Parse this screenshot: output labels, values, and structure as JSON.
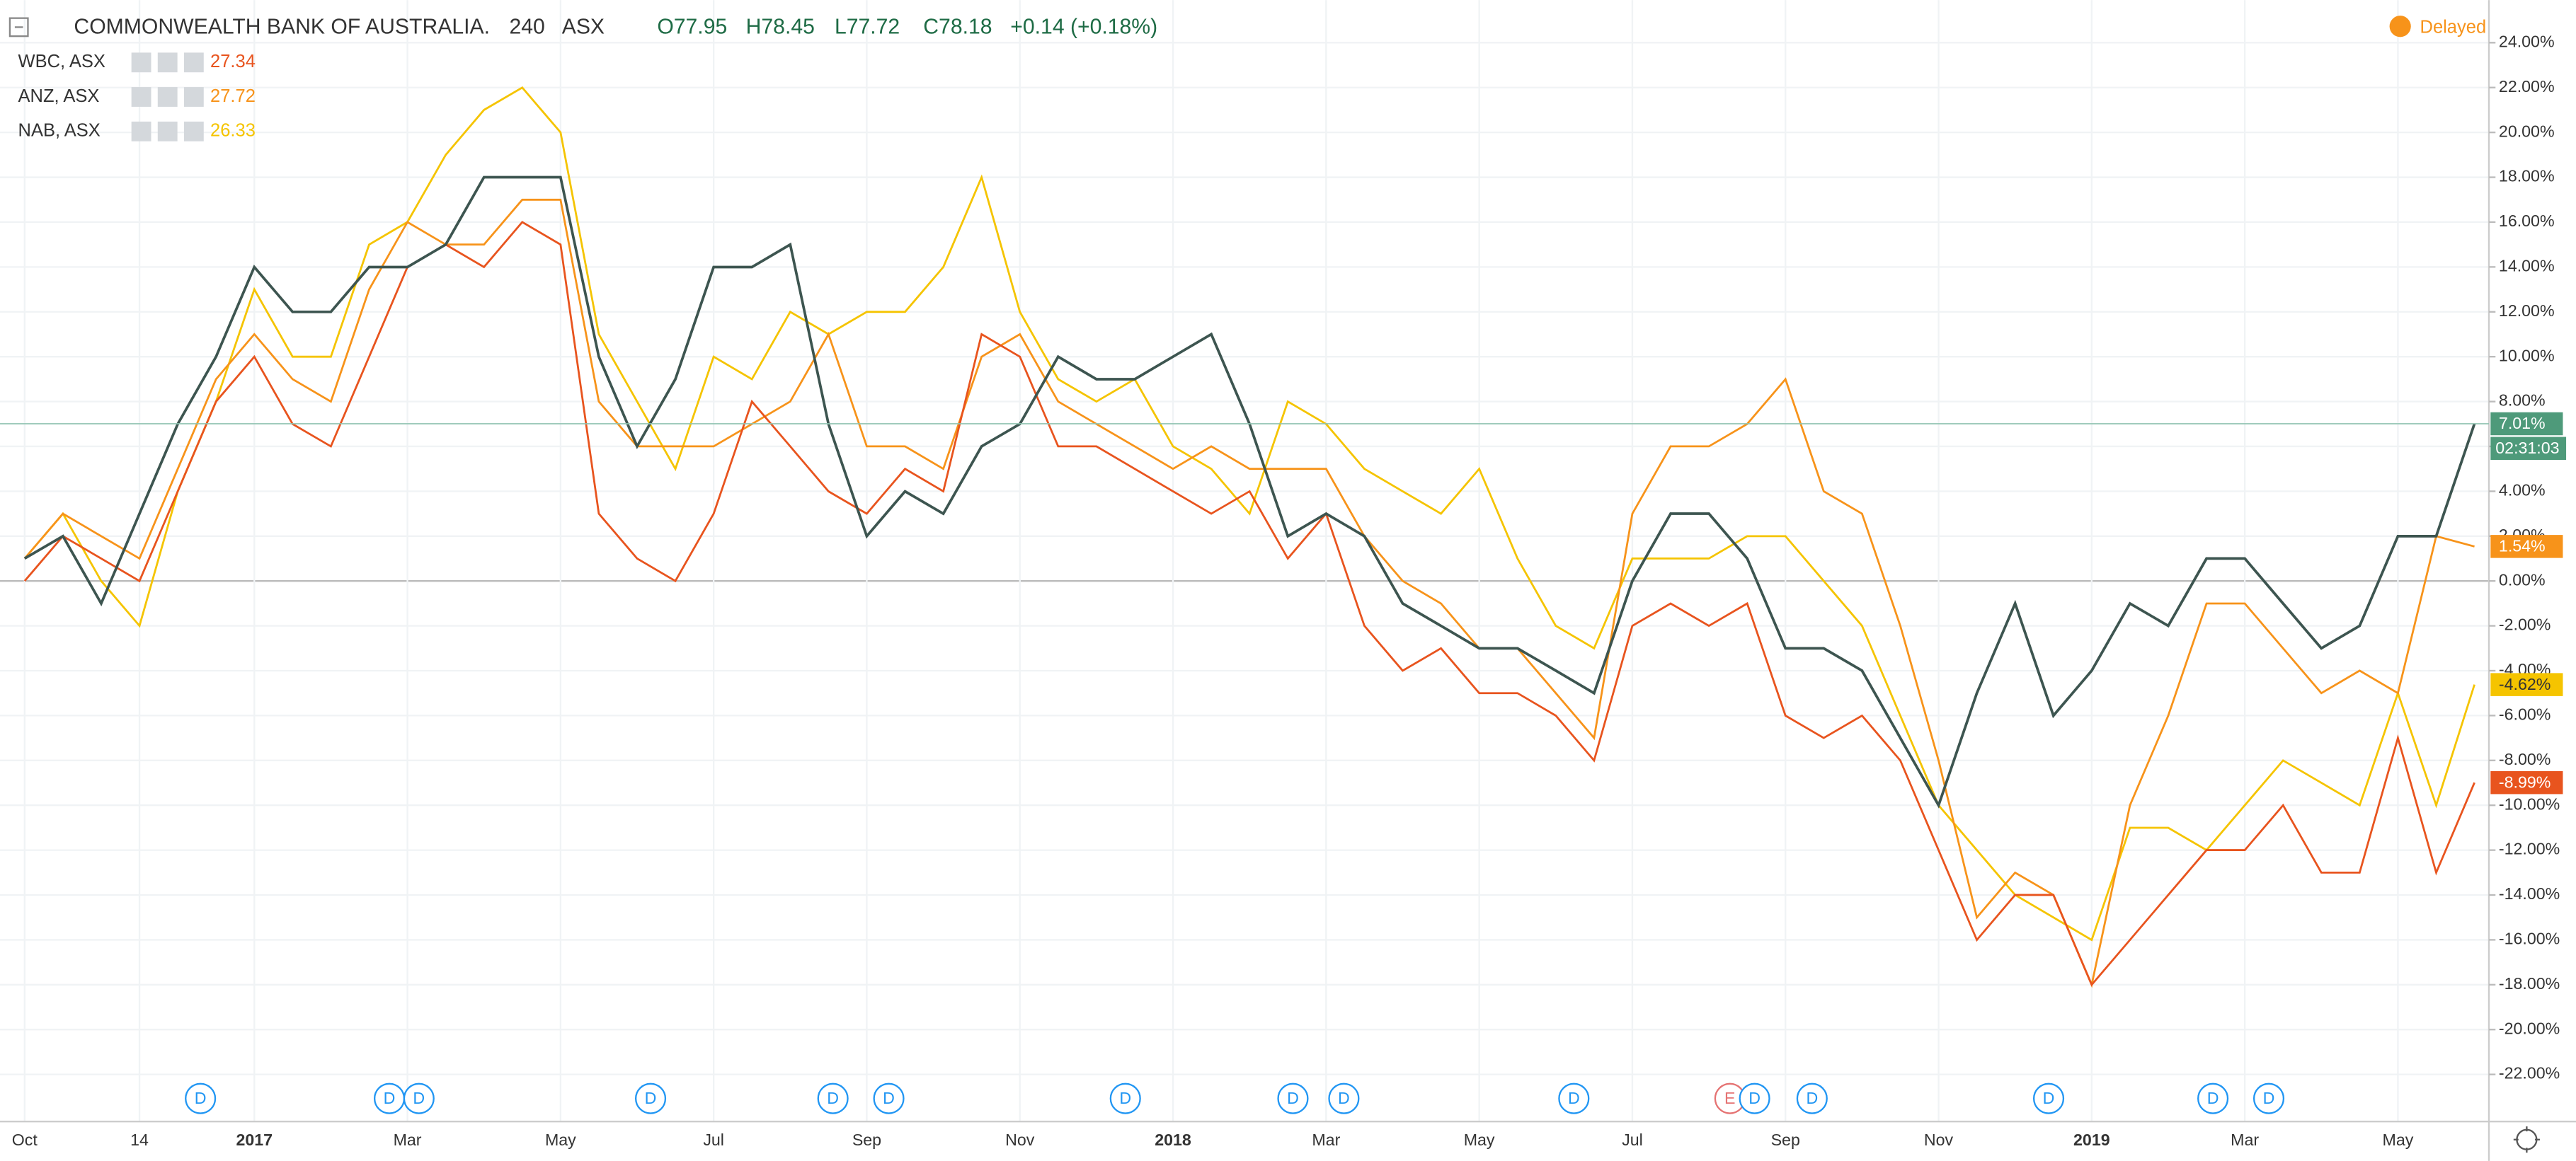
{
  "header": {
    "interval": "240",
    "exchange": "ASX",
    "ohlc": [
      "O77.95",
      "H78.45",
      "L77.72",
      "C78.18"
    ],
    "change": "+0.14 (+0.18%)",
    "status": "Delayed",
    "countdown": "02:31:03"
  },
  "markers": [
    "D",
    "D",
    "D",
    "D",
    "D",
    "D",
    "D",
    "D",
    "D",
    "D",
    "E",
    "D",
    "D",
    "D",
    "D",
    "D"
  ],
  "chart_data": {
    "type": "line",
    "categories": [
      "Oct",
      null,
      null,
      "14",
      null,
      null,
      "2017",
      null,
      null,
      null,
      "Mar",
      null,
      null,
      null,
      "May",
      null,
      null,
      null,
      "Jul",
      null,
      null,
      null,
      "Sep",
      null,
      null,
      null,
      "Nov",
      null,
      null,
      null,
      "2018",
      null,
      null,
      null,
      "Mar",
      null,
      null,
      null,
      "May",
      null,
      null,
      null,
      "Jul",
      null,
      null,
      null,
      "Sep",
      null,
      null,
      null,
      "Nov",
      null,
      null,
      null,
      "2019",
      null,
      null,
      null,
      "Mar",
      null,
      null,
      null,
      "May",
      null,
      null
    ],
    "ylim": [
      -24.1,
      25.9
    ],
    "yticks": [
      {
        "value": -22,
        "label": "-22.00%"
      },
      {
        "value": -20,
        "label": "-20.00%"
      },
      {
        "value": -18,
        "label": "-18.00%"
      },
      {
        "value": -16,
        "label": "-16.00%"
      },
      {
        "value": -14,
        "label": "-14.00%"
      },
      {
        "value": -12,
        "label": "-12.00%"
      },
      {
        "value": -10,
        "label": "-10.00%"
      },
      {
        "value": -8,
        "label": "-8.00%"
      },
      {
        "value": -6,
        "label": "-6.00%"
      },
      {
        "value": -4,
        "label": "-4.00%"
      },
      {
        "value": -2,
        "label": "-2.00%"
      },
      {
        "value": 0,
        "label": "0.00%"
      },
      {
        "value": 2,
        "label": "2.00%"
      },
      {
        "value": 4,
        "label": "4.00%"
      },
      {
        "value": 6,
        "label": "6.00%"
      },
      {
        "value": 8,
        "label": "8.00%"
      },
      {
        "value": 10,
        "label": "10.00%"
      },
      {
        "value": 12,
        "label": "12.00%"
      },
      {
        "value": 14,
        "label": "14.00%"
      },
      {
        "value": 16,
        "label": "16.00%"
      },
      {
        "value": 18,
        "label": "18.00%"
      },
      {
        "value": 20,
        "label": "20.00%"
      },
      {
        "value": 22,
        "label": "22.00%"
      },
      {
        "value": 24,
        "label": "24.00%"
      }
    ],
    "grid": true,
    "series": [
      {
        "name": "COMMONWEALTH BANK OF AUSTRALIA.",
        "color": "#3d5550",
        "last_label": "7.01%",
        "label_color": "#4e9a7a",
        "values": [
          1,
          2,
          -1,
          3,
          7,
          10,
          14,
          12,
          12,
          14,
          14,
          15,
          18,
          18,
          18,
          10,
          6,
          9,
          14,
          14,
          15,
          7,
          2,
          4,
          3,
          6,
          7,
          10,
          9,
          9,
          10,
          11,
          7,
          2,
          3,
          2,
          -1,
          -2,
          -3,
          -3,
          -4,
          -5,
          0,
          3,
          3,
          1,
          -3,
          -3,
          -4,
          -7,
          -10,
          -5,
          -1,
          -6,
          -4,
          -1,
          -2,
          1,
          1,
          -1,
          -3,
          -2,
          2,
          2,
          7.01
        ]
      },
      {
        "name": "WBC, ASX",
        "color": "#e8541e",
        "price": 27.34,
        "last_label": "-8.99%",
        "label_color": "#e8541e",
        "values": [
          0,
          2,
          1,
          0,
          4,
          8,
          10,
          7,
          6,
          10,
          14,
          15,
          14,
          16,
          15,
          3,
          1,
          0,
          3,
          8,
          6,
          4,
          3,
          5,
          4,
          11,
          10,
          6,
          6,
          5,
          4,
          3,
          4,
          1,
          3,
          -2,
          -4,
          -3,
          -5,
          -5,
          -6,
          -8,
          -2,
          -1,
          -2,
          -1,
          -6,
          -7,
          -6,
          -8,
          -12,
          -16,
          -14,
          -14,
          -18,
          -16,
          -14,
          -12,
          -12,
          -10,
          -13,
          -13,
          -7,
          -13,
          -8.99
        ]
      },
      {
        "name": "ANZ, ASX",
        "color": "#f7931a",
        "price": 27.72,
        "last_label": "1.54%",
        "label_color": "#f7931a",
        "values": [
          1,
          3,
          2,
          1,
          5,
          9,
          11,
          9,
          8,
          13,
          16,
          15,
          15,
          17,
          17,
          8,
          6,
          6,
          6,
          7,
          8,
          11,
          6,
          6,
          5,
          10,
          11,
          8,
          7,
          6,
          5,
          6,
          5,
          5,
          5,
          2,
          0,
          -1,
          -3,
          -3,
          -5,
          -7,
          3,
          6,
          6,
          7,
          9,
          4,
          3,
          -2,
          -8,
          -15,
          -13,
          -14,
          -18,
          -10,
          -6,
          -1,
          -1,
          -3,
          -5,
          -4,
          -5,
          2,
          1.54
        ]
      },
      {
        "name": "NAB, ASX",
        "color": "#f5c400",
        "price": 26.33,
        "last_label": "-4.62%",
        "label_color": "#f5c400",
        "values": [
          1,
          3,
          0,
          -2,
          4,
          8,
          13,
          10,
          10,
          15,
          16,
          19,
          21,
          22,
          20,
          11,
          8,
          5,
          10,
          9,
          12,
          11,
          12,
          12,
          14,
          18,
          12,
          9,
          8,
          9,
          6,
          5,
          3,
          8,
          7,
          5,
          4,
          3,
          5,
          1,
          -2,
          -3,
          1,
          1,
          1,
          2,
          2,
          0,
          -2,
          -6,
          -10,
          -12,
          -14,
          -15,
          -16,
          -11,
          -11,
          -12,
          -10,
          -8,
          -9,
          -10,
          -5,
          -10,
          -4.62
        ]
      }
    ]
  }
}
